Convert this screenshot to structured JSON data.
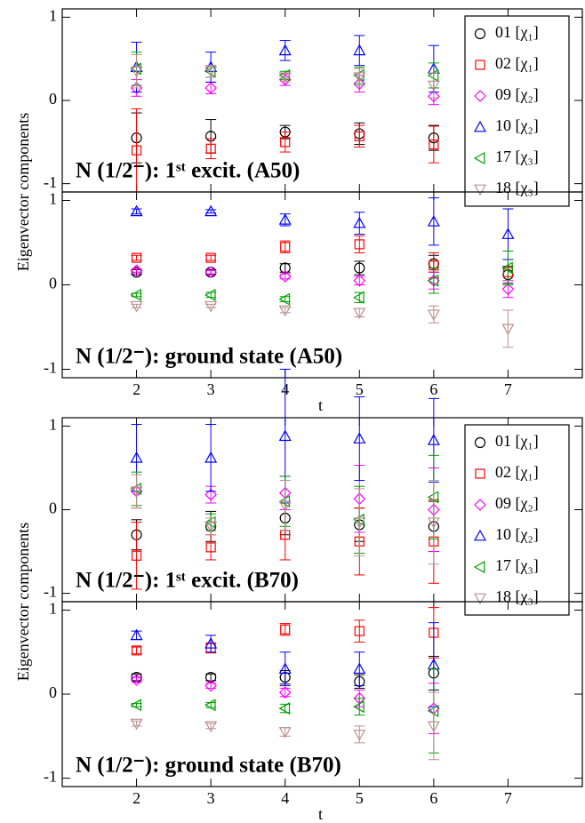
{
  "chart_data": [
    {
      "type": "scatter",
      "ylabel": "Eigenvector components",
      "annotation": "N (1/2⁻): 1ˢᵗ excit. (A50)",
      "x": [
        2,
        3,
        4,
        5,
        6,
        7
      ],
      "xlim": [
        1,
        8
      ],
      "xticks": [
        2,
        3,
        4,
        5,
        6,
        7
      ],
      "xtick_labels": false,
      "ylim": [
        -1.1,
        1.1
      ],
      "yticks": [
        -1,
        0,
        1
      ],
      "legend": "upper right",
      "series": [
        {
          "name": "01 [χ₁]",
          "color": "#000000",
          "marker": "circle",
          "values": [
            -0.45,
            -0.43,
            -0.38,
            -0.4,
            -0.45,
            null
          ],
          "errors": [
            0.3,
            0.2,
            0.08,
            0.13,
            0.15,
            null
          ]
        },
        {
          "name": "02 [χ₁]",
          "color": "#ff0000",
          "marker": "square",
          "values": [
            -0.6,
            -0.58,
            -0.5,
            -0.43,
            -0.53,
            null
          ],
          "errors": [
            0.5,
            0.12,
            0.12,
            0.13,
            0.22,
            null
          ]
        },
        {
          "name": "09 [χ₂]",
          "color": "#ff00ff",
          "marker": "diamond",
          "values": [
            0.15,
            0.15,
            0.25,
            0.2,
            0.05,
            null
          ],
          "errors": [
            0.1,
            0.07,
            0.07,
            0.1,
            0.1,
            null
          ]
        },
        {
          "name": "10 [χ₂]",
          "color": "#0000ff",
          "marker": "triangle-up",
          "values": [
            0.4,
            0.4,
            0.6,
            0.6,
            0.38,
            null
          ],
          "errors": [
            0.3,
            0.18,
            0.12,
            0.18,
            0.28,
            null
          ]
        },
        {
          "name": "17 [χ₃]",
          "color": "#00a000",
          "marker": "triangle-left",
          "values": [
            0.38,
            0.35,
            0.3,
            0.3,
            0.3,
            null
          ],
          "errors": [
            0.2,
            0.07,
            0.05,
            0.1,
            0.15,
            null
          ]
        },
        {
          "name": "18 [χ₃]",
          "color": "#bc8f8f",
          "marker": "triangle-down",
          "values": [
            0.35,
            0.35,
            0.28,
            0.28,
            0.18,
            null
          ],
          "errors": [
            0.2,
            0.07,
            0.05,
            0.1,
            0.15,
            null
          ]
        }
      ]
    },
    {
      "type": "scatter",
      "annotation": "N (1/2⁻): ground state (A50)",
      "xlabel": "t",
      "x": [
        2,
        3,
        4,
        5,
        6,
        7
      ],
      "xlim": [
        1,
        8
      ],
      "xticks": [
        2,
        3,
        4,
        5,
        6,
        7
      ],
      "xtick_labels": true,
      "ylim": [
        -1.1,
        1.1
      ],
      "yticks": [
        -1,
        0,
        1
      ],
      "series": [
        {
          "color": "#000000",
          "marker": "circle",
          "values": [
            0.15,
            0.15,
            0.2,
            0.2,
            0.25,
            0.12
          ],
          "errors": [
            0.03,
            0.03,
            0.05,
            0.08,
            0.1,
            0.1
          ]
        },
        {
          "color": "#ff0000",
          "marker": "square",
          "values": [
            0.32,
            0.32,
            0.45,
            0.48,
            0.23,
            0.15
          ],
          "errors": [
            0.03,
            0.03,
            0.07,
            0.1,
            0.15,
            0.15
          ]
        },
        {
          "color": "#ff00ff",
          "marker": "diamond",
          "values": [
            0.17,
            0.15,
            0.1,
            0.05,
            0.05,
            -0.05
          ],
          "errors": [
            0.02,
            0.02,
            0.03,
            0.05,
            0.1,
            0.1
          ]
        },
        {
          "color": "#0000ff",
          "marker": "triangle-up",
          "values": [
            0.87,
            0.87,
            0.77,
            0.73,
            0.75,
            0.6
          ],
          "errors": [
            0.03,
            0.02,
            0.07,
            0.13,
            0.28,
            0.3
          ]
        },
        {
          "color": "#00a000",
          "marker": "triangle-left",
          "values": [
            -0.12,
            -0.12,
            -0.17,
            -0.15,
            0.05,
            0.2
          ],
          "errors": [
            0.02,
            0.03,
            0.03,
            0.06,
            0.15,
            0.2
          ]
        },
        {
          "color": "#bc8f8f",
          "marker": "triangle-down",
          "values": [
            -0.25,
            -0.25,
            -0.3,
            -0.33,
            -0.35,
            -0.52
          ],
          "errors": [
            0.02,
            0.02,
            0.03,
            0.05,
            0.1,
            0.22
          ]
        }
      ]
    },
    {
      "type": "scatter",
      "ylabel": "Eigenvector components",
      "annotation": "N (1/2⁻): 1ˢᵗ excit. (B70)",
      "x": [
        2,
        3,
        4,
        5,
        6,
        7
      ],
      "xlim": [
        1,
        8
      ],
      "xticks": [
        2,
        3,
        4,
        5,
        6,
        7
      ],
      "xtick_labels": false,
      "ylim": [
        -1.1,
        1.1
      ],
      "yticks": [
        -1,
        0,
        1
      ],
      "legend": "upper right",
      "series": [
        {
          "name": "01 [χ₁]",
          "color": "#000000",
          "marker": "circle",
          "values": [
            -0.3,
            -0.2,
            -0.1,
            -0.18,
            -0.2,
            null
          ],
          "errors": [
            0.18,
            0.18,
            0.2,
            0.2,
            0.3,
            null
          ]
        },
        {
          "name": "02 [χ₁]",
          "color": "#ff0000",
          "marker": "square",
          "values": [
            -0.55,
            -0.45,
            -0.3,
            -0.38,
            -0.38,
            null
          ],
          "errors": [
            0.4,
            0.15,
            0.3,
            0.4,
            0.5,
            null
          ]
        },
        {
          "name": "09 [χ₂]",
          "color": "#ff00ff",
          "marker": "diamond",
          "values": [
            0.22,
            0.18,
            0.2,
            0.13,
            0.0,
            null
          ],
          "errors": [
            0.2,
            0.1,
            0.2,
            0.4,
            0.5,
            null
          ]
        },
        {
          "name": "10 [χ₂]",
          "color": "#0000ff",
          "marker": "triangle-up",
          "values": [
            0.62,
            0.62,
            0.88,
            0.85,
            0.83,
            null
          ],
          "errors": [
            0.4,
            0.4,
            0.8,
            0.5,
            0.5,
            null
          ]
        },
        {
          "name": "17 [χ₃]",
          "color": "#00a000",
          "marker": "triangle-left",
          "values": [
            0.25,
            -0.15,
            0.1,
            -0.12,
            0.15,
            null
          ],
          "errors": [
            0.2,
            0.1,
            0.3,
            0.4,
            0.5,
            null
          ]
        },
        {
          "name": "18 [χ₃]",
          "color": "#bc8f8f",
          "marker": "triangle-down",
          "values": [
            0.22,
            -0.2,
            0.05,
            -0.15,
            -0.15,
            null
          ],
          "errors": [
            0.2,
            0.1,
            0.3,
            0.4,
            0.5,
            null
          ]
        }
      ]
    },
    {
      "type": "scatter",
      "annotation": "N (1/2⁻): ground state (B70)",
      "xlabel": "t",
      "x": [
        2,
        3,
        4,
        5,
        6,
        7
      ],
      "xlim": [
        1,
        8
      ],
      "xticks": [
        2,
        3,
        4,
        5,
        6,
        7
      ],
      "xtick_labels": true,
      "ylim": [
        -1.1,
        1.1
      ],
      "yticks": [
        -1,
        0,
        1
      ],
      "series": [
        {
          "color": "#000000",
          "marker": "circle",
          "values": [
            0.2,
            0.2,
            0.2,
            0.15,
            0.25,
            null
          ],
          "errors": [
            0.04,
            0.04,
            0.08,
            0.08,
            0.2,
            null
          ]
        },
        {
          "color": "#ff0000",
          "marker": "square",
          "values": [
            0.52,
            0.55,
            0.77,
            0.75,
            0.73,
            null
          ],
          "errors": [
            0.04,
            0.06,
            0.07,
            0.13,
            0.3,
            null
          ]
        },
        {
          "color": "#ff00ff",
          "marker": "diamond",
          "values": [
            0.17,
            0.1,
            0.02,
            -0.05,
            -0.17,
            null
          ],
          "errors": [
            0.03,
            0.03,
            0.05,
            0.1,
            0.3,
            null
          ]
        },
        {
          "color": "#0000ff",
          "marker": "triangle-up",
          "values": [
            0.7,
            0.6,
            0.3,
            0.3,
            0.35,
            null
          ],
          "errors": [
            0.05,
            0.1,
            0.2,
            0.2,
            0.5,
            null
          ]
        },
        {
          "color": "#00a000",
          "marker": "triangle-left",
          "values": [
            -0.13,
            -0.13,
            -0.17,
            -0.15,
            -0.2,
            null
          ],
          "errors": [
            0.02,
            0.03,
            0.05,
            0.1,
            0.5,
            null
          ]
        },
        {
          "color": "#bc8f8f",
          "marker": "triangle-down",
          "values": [
            -0.35,
            -0.38,
            -0.45,
            -0.48,
            -0.38,
            null
          ],
          "errors": [
            0.03,
            0.03,
            0.05,
            0.1,
            0.4,
            null
          ]
        }
      ]
    }
  ]
}
